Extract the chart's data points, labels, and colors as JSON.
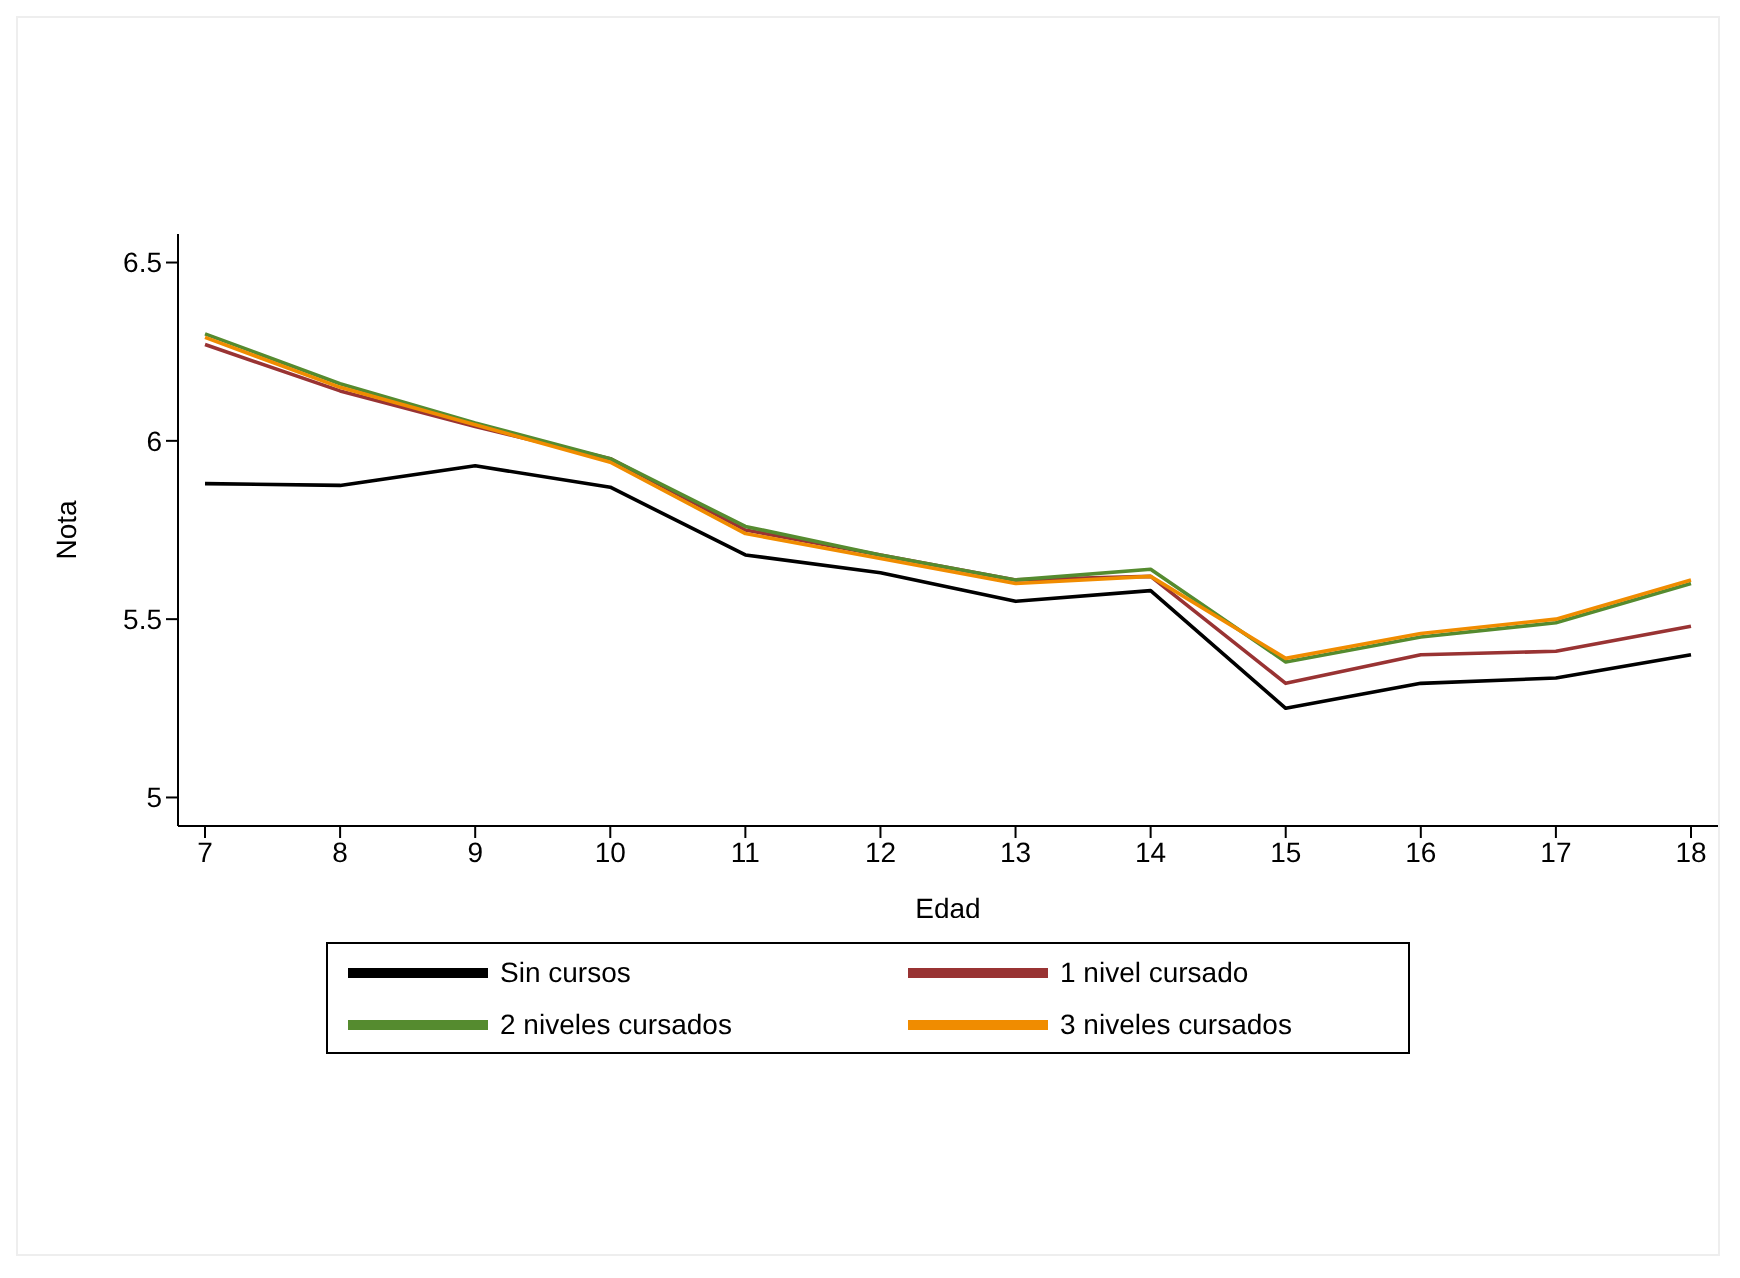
{
  "chart_data": {
    "type": "line",
    "xlabel": "Edad",
    "ylabel": "Nota",
    "x": [
      7,
      8,
      9,
      10,
      11,
      12,
      13,
      14,
      15,
      16,
      17,
      18
    ],
    "xlim": [
      6.8,
      18.2
    ],
    "xticks": [
      7,
      8,
      9,
      10,
      11,
      12,
      13,
      14,
      15,
      16,
      17,
      18
    ],
    "ylim": [
      4.92,
      6.58
    ],
    "yticks": [
      5,
      5.5,
      6,
      6.5
    ],
    "grid": false,
    "legend": "bottom",
    "marker": "none",
    "line_style": "solid",
    "series": [
      {
        "name": "Sin cursos",
        "color": "#000000",
        "values": [
          5.88,
          5.875,
          5.93,
          5.87,
          5.68,
          5.63,
          5.55,
          5.58,
          5.25,
          5.32,
          5.335,
          5.4
        ]
      },
      {
        "name": "1 nivel cursado",
        "color": "#993333",
        "values": [
          6.27,
          6.14,
          6.04,
          5.95,
          5.75,
          5.68,
          5.61,
          5.62,
          5.32,
          5.4,
          5.41,
          5.48
        ]
      },
      {
        "name": "2 niveles cursados",
        "color": "#558b2f",
        "values": [
          6.3,
          6.16,
          6.05,
          5.95,
          5.76,
          5.68,
          5.61,
          5.64,
          5.38,
          5.45,
          5.49,
          5.6
        ]
      },
      {
        "name": "3 niveles cursados",
        "color": "#f08c00",
        "values": [
          6.29,
          6.15,
          6.045,
          5.94,
          5.74,
          5.67,
          5.6,
          5.62,
          5.39,
          5.46,
          5.5,
          5.61
        ]
      }
    ]
  }
}
